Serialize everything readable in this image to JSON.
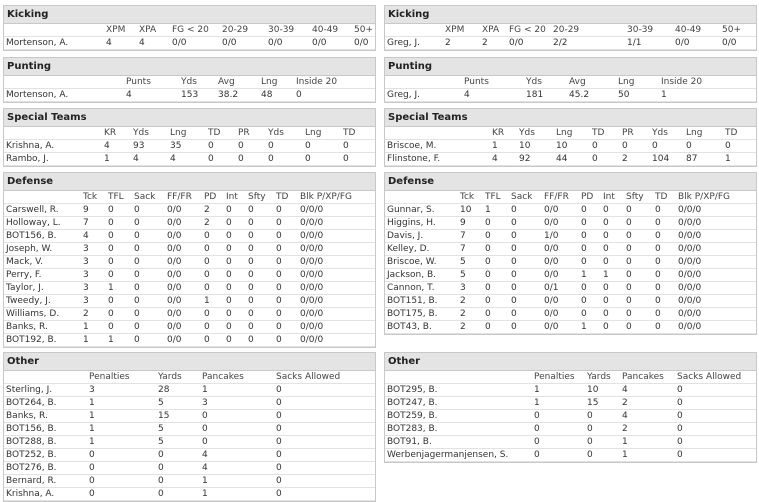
{
  "left": [
    {
      "title": "Kicking",
      "columns": [
        "XPM",
        "XPA",
        "FG < 20",
        "20-29",
        "30-39",
        "40-49",
        "50+"
      ],
      "rows": [
        [
          "Mortenson, A.",
          "4",
          "4",
          "0/0",
          "0/0",
          "0/0",
          "0/0",
          "0/0"
        ]
      ]
    },
    {
      "title": "Punting",
      "columns": [
        "Punts",
        "Yds",
        "Avg",
        "Lng",
        "Inside 20"
      ],
      "rows": [
        [
          "Mortenson, A.",
          "4",
          "153",
          "38.2",
          "48",
          "0"
        ]
      ]
    },
    {
      "title": "Special Teams",
      "columns": [
        "KR",
        "Yds",
        "Lng",
        "TD",
        "PR",
        "Yds",
        "Lng",
        "TD"
      ],
      "rows": [
        [
          "Krishna, A.",
          "4",
          "93",
          "35",
          "0",
          "0",
          "0",
          "0",
          "0"
        ],
        [
          "Rambo, J.",
          "1",
          "4",
          "4",
          "0",
          "0",
          "0",
          "0",
          "0"
        ]
      ]
    },
    {
      "title": "Defense",
      "columns": [
        "Tck",
        "TFL",
        "Sack",
        "FF/FR",
        "PD",
        "Int",
        "Sfty",
        "TD",
        "Blk P/XP/FG"
      ],
      "rows": [
        [
          "Carswell, R.",
          "9",
          "0",
          "0",
          "0/0",
          "2",
          "0",
          "0",
          "0",
          "0/0/0"
        ],
        [
          "Holloway, L.",
          "7",
          "0",
          "0",
          "0/0",
          "2",
          "0",
          "0",
          "0",
          "0/0/0"
        ],
        [
          "BOT156, B.",
          "4",
          "0",
          "0",
          "0/0",
          "0",
          "0",
          "0",
          "0",
          "0/0/0"
        ],
        [
          "Joseph, W.",
          "3",
          "0",
          "0",
          "0/0",
          "0",
          "0",
          "0",
          "0",
          "0/0/0"
        ],
        [
          "Mack, V.",
          "3",
          "0",
          "0",
          "0/0",
          "0",
          "0",
          "0",
          "0",
          "0/0/0"
        ],
        [
          "Perry, F.",
          "3",
          "0",
          "0",
          "0/0",
          "0",
          "0",
          "0",
          "0",
          "0/0/0"
        ],
        [
          "Taylor, J.",
          "3",
          "1",
          "0",
          "0/0",
          "0",
          "0",
          "0",
          "0",
          "0/0/0"
        ],
        [
          "Tweedy, J.",
          "3",
          "0",
          "0",
          "0/0",
          "1",
          "0",
          "0",
          "0",
          "0/0/0"
        ],
        [
          "Williams, D.",
          "2",
          "0",
          "0",
          "0/0",
          "0",
          "0",
          "0",
          "0",
          "0/0/0"
        ],
        [
          "Banks, R.",
          "1",
          "0",
          "0",
          "0/0",
          "0",
          "0",
          "0",
          "0",
          "0/0/0"
        ],
        [
          "BOT192, B.",
          "1",
          "1",
          "0",
          "0/0",
          "0",
          "0",
          "0",
          "0",
          "0/0/0"
        ]
      ]
    },
    {
      "title": "Other",
      "columns": [
        "Penalties",
        "Yards",
        "Pancakes",
        "Sacks Allowed"
      ],
      "rows": [
        [
          "Sterling, J.",
          "3",
          "28",
          "1",
          "0"
        ],
        [
          "BOT264, B.",
          "1",
          "5",
          "3",
          "0"
        ],
        [
          "Banks, R.",
          "1",
          "15",
          "0",
          "0"
        ],
        [
          "BOT156, B.",
          "1",
          "5",
          "0",
          "0"
        ],
        [
          "BOT288, B.",
          "1",
          "5",
          "0",
          "0"
        ],
        [
          "BOT252, B.",
          "0",
          "0",
          "4",
          "0"
        ],
        [
          "BOT276, B.",
          "0",
          "0",
          "4",
          "0"
        ],
        [
          "Bernard, R.",
          "0",
          "0",
          "1",
          "0"
        ],
        [
          "Krishna, A.",
          "0",
          "0",
          "1",
          "0"
        ]
      ]
    }
  ],
  "right": [
    {
      "title": "Kicking",
      "columns": [
        "XPM",
        "XPA",
        "FG < 20",
        "20-29",
        "30-39",
        "40-49",
        "50+"
      ],
      "rows": [
        [
          "Greg, J.",
          "2",
          "2",
          "0/0",
          "2/2",
          "1/1",
          "0/0",
          "0/0"
        ]
      ]
    },
    {
      "title": "Punting",
      "columns": [
        "Punts",
        "Yds",
        "Avg",
        "Lng",
        "Inside 20"
      ],
      "rows": [
        [
          "Greg, J.",
          "4",
          "181",
          "45.2",
          "50",
          "1"
        ]
      ]
    },
    {
      "title": "Special Teams",
      "columns": [
        "KR",
        "Yds",
        "Lng",
        "TD",
        "PR",
        "Yds",
        "Lng",
        "TD"
      ],
      "rows": [
        [
          "Briscoe, M.",
          "1",
          "10",
          "10",
          "0",
          "0",
          "0",
          "0",
          "0"
        ],
        [
          "Flinstone, F.",
          "4",
          "92",
          "44",
          "0",
          "2",
          "104",
          "87",
          "1"
        ]
      ]
    },
    {
      "title": "Defense",
      "columns": [
        "Tck",
        "TFL",
        "Sack",
        "FF/FR",
        "PD",
        "Int",
        "Sfty",
        "TD",
        "Blk P/XP/FG"
      ],
      "rows": [
        [
          "Gunnar, S.",
          "10",
          "1",
          "0",
          "0/0",
          "0",
          "0",
          "0",
          "0",
          "0/0/0"
        ],
        [
          "Higgins, H.",
          "9",
          "0",
          "0",
          "0/0",
          "0",
          "0",
          "0",
          "0",
          "0/0/0"
        ],
        [
          "Davis, J.",
          "7",
          "0",
          "0",
          "1/0",
          "0",
          "0",
          "0",
          "0",
          "0/0/0"
        ],
        [
          "Kelley, D.",
          "7",
          "0",
          "0",
          "0/0",
          "0",
          "0",
          "0",
          "0",
          "0/0/0"
        ],
        [
          "Briscoe, W.",
          "5",
          "0",
          "0",
          "0/0",
          "0",
          "0",
          "0",
          "0",
          "0/0/0"
        ],
        [
          "Jackson, B.",
          "5",
          "0",
          "0",
          "0/0",
          "1",
          "1",
          "0",
          "0",
          "0/0/0"
        ],
        [
          "Cannon, T.",
          "3",
          "0",
          "0",
          "0/1",
          "0",
          "0",
          "0",
          "0",
          "0/0/0"
        ],
        [
          "BOT151, B.",
          "2",
          "0",
          "0",
          "0/0",
          "0",
          "0",
          "0",
          "0",
          "0/0/0"
        ],
        [
          "BOT175, B.",
          "2",
          "0",
          "0",
          "0/0",
          "0",
          "0",
          "0",
          "0",
          "0/0/0"
        ],
        [
          "BOT43, B.",
          "2",
          "0",
          "0",
          "0/0",
          "1",
          "0",
          "0",
          "0",
          "0/0/0"
        ]
      ]
    },
    {
      "title": "Other",
      "columns": [
        "Penalties",
        "Yards",
        "Pancakes",
        "Sacks Allowed"
      ],
      "rows": [
        [
          "BOT295, B.",
          "1",
          "10",
          "4",
          "0"
        ],
        [
          "BOT247, B.",
          "1",
          "15",
          "2",
          "0"
        ],
        [
          "BOT259, B.",
          "0",
          "0",
          "4",
          "0"
        ],
        [
          "BOT283, B.",
          "0",
          "0",
          "2",
          "0"
        ],
        [
          "BOT91, B.",
          "0",
          "0",
          "1",
          "0"
        ],
        [
          "Werbenjagermanjensen, S.",
          "0",
          "0",
          "1",
          "0"
        ]
      ]
    }
  ]
}
